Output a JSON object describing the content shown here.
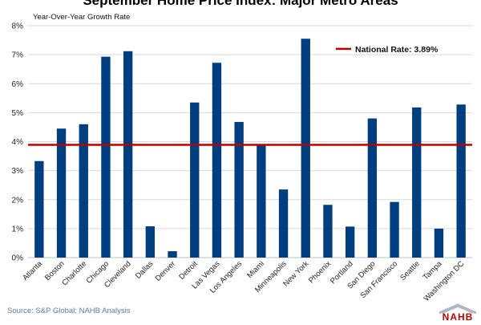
{
  "chart_data": {
    "type": "bar",
    "title": "September Home Price Index: Major Metro Areas",
    "ylabel": "Year-Over-Year Growth Rate",
    "ylim": [
      0,
      8
    ],
    "yticks": [
      "0%",
      "1%",
      "2%",
      "3%",
      "4%",
      "5%",
      "6%",
      "7%",
      "8%"
    ],
    "grid": true,
    "bar_color": "#003f7f",
    "categories": [
      "Atlanta",
      "Boston",
      "Charlotte",
      "Chicago",
      "Cleveland",
      "Dallas",
      "Denver",
      "Detroit",
      "Las Vegas",
      "Los Angeles",
      "Miami",
      "Minneapolis",
      "New York",
      "Phoenix",
      "Portland",
      "San Diego",
      "San Francisco",
      "Seattle",
      "Tampa",
      "Washington DC"
    ],
    "values": [
      3.33,
      4.45,
      4.6,
      6.93,
      7.12,
      1.08,
      0.22,
      5.35,
      6.72,
      4.68,
      3.88,
      2.35,
      7.55,
      1.82,
      1.07,
      4.8,
      1.92,
      5.18,
      1.0,
      5.28
    ],
    "reference_line": {
      "label": "National Rate: 3.89%",
      "value": 3.89,
      "color": "#c00000"
    }
  },
  "source": "Source: S&P Global; NAHB Analysis",
  "logo": {
    "text": "NAHB",
    "colors": [
      "#b0b7c2",
      "#c00000"
    ]
  }
}
